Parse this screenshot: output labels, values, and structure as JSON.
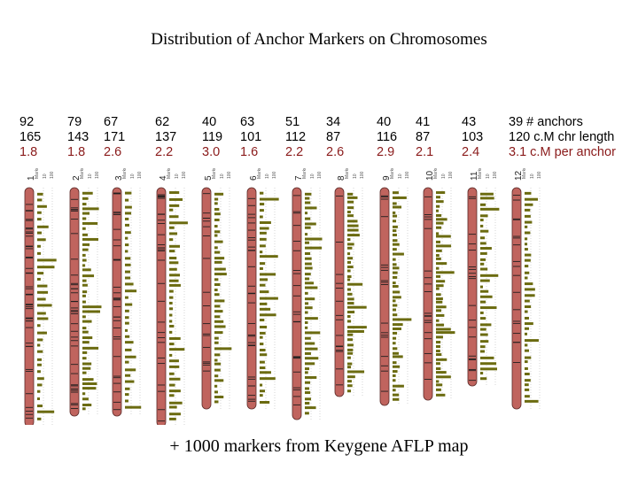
{
  "title": "Distribution of Anchor Markers on Chromosomes",
  "footer": "+ 1000 markers from Keygene AFLP map",
  "legend": {
    "anchors": "# anchors",
    "length": "c.M chr length",
    "ratio": "c.M per anchor"
  },
  "scale_labels": [
    "Markers",
    "10",
    "100"
  ],
  "colors": {
    "chromosome": "#c0645e",
    "bands": "#202020",
    "markers": "#6b6b10",
    "ratio_text": "#8a1a1a"
  },
  "chromosomes": [
    {
      "id": "1",
      "anchors": "92",
      "length": "165",
      "per_anchor": "1.8"
    },
    {
      "id": "2",
      "anchors": "79",
      "length": "143",
      "per_anchor": "1.8"
    },
    {
      "id": "3",
      "anchors": "67",
      "length": "171",
      "per_anchor": "2.6"
    },
    {
      "id": "4",
      "anchors": "62",
      "length": "137",
      "per_anchor": "2.2"
    },
    {
      "id": "5",
      "anchors": "40",
      "length": "119",
      "per_anchor": "3.0"
    },
    {
      "id": "6",
      "anchors": "63",
      "length": "101",
      "per_anchor": "1.6"
    },
    {
      "id": "7",
      "anchors": "51",
      "length": "112",
      "per_anchor": "2.2"
    },
    {
      "id": "8",
      "anchors": "34",
      "length": "87",
      "per_anchor": "2.6"
    },
    {
      "id": "9",
      "anchors": "40",
      "length": "116",
      "per_anchor": "2.9"
    },
    {
      "id": "10",
      "anchors": "41",
      "length": "87",
      "per_anchor": "2.1"
    },
    {
      "id": "11",
      "anchors": "43",
      "length": "103",
      "per_anchor": "2.4"
    },
    {
      "id": "12",
      "anchors": "39",
      "length": "120",
      "per_anchor": "3.1"
    }
  ]
}
